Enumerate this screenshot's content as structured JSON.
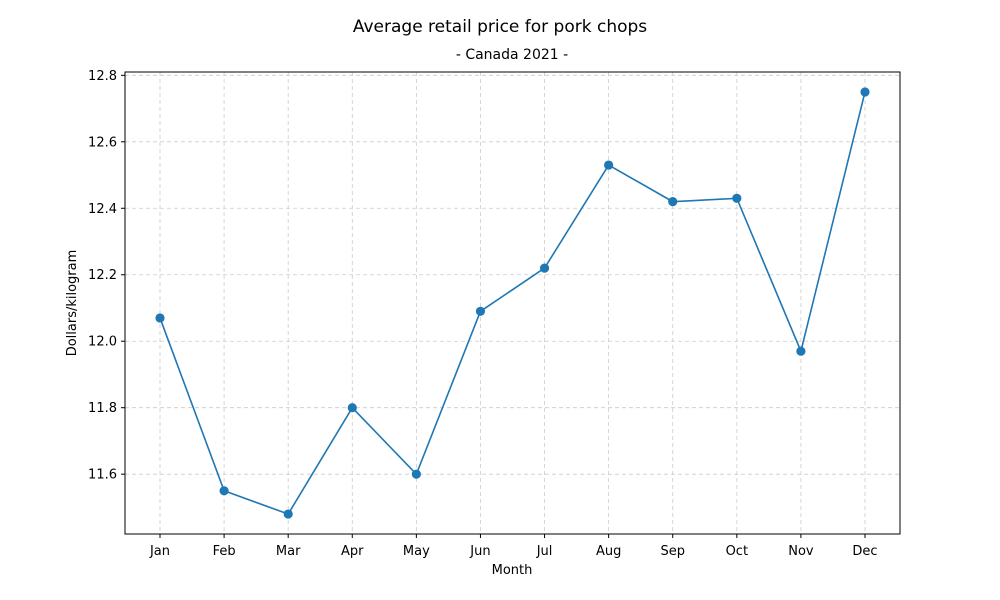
{
  "chart_data": {
    "type": "line",
    "title": "Average retail price for pork chops",
    "subtitle": "- Canada 2021 -",
    "xlabel": "Month",
    "ylabel": "Dollars/kilogram",
    "categories": [
      "Jan",
      "Feb",
      "Mar",
      "Apr",
      "May",
      "Jun",
      "Jul",
      "Aug",
      "Sep",
      "Oct",
      "Nov",
      "Dec"
    ],
    "series": [
      {
        "values": [
          12.07,
          11.55,
          11.48,
          11.8,
          11.6,
          12.09,
          12.22,
          12.53,
          12.42,
          12.43,
          11.97,
          12.75
        ],
        "color": "#1f77b4",
        "marker": "circle"
      }
    ],
    "ylim": [
      11.42,
      12.81
    ],
    "yticks": [
      11.6,
      11.8,
      12.0,
      12.2,
      12.4,
      12.6,
      12.8
    ],
    "ytick_labels": [
      "11.6",
      "11.8",
      "12.0",
      "12.2",
      "12.4",
      "12.6",
      "12.8"
    ],
    "grid": true,
    "grid_style": "dashed",
    "grid_color": "#cccccc"
  }
}
